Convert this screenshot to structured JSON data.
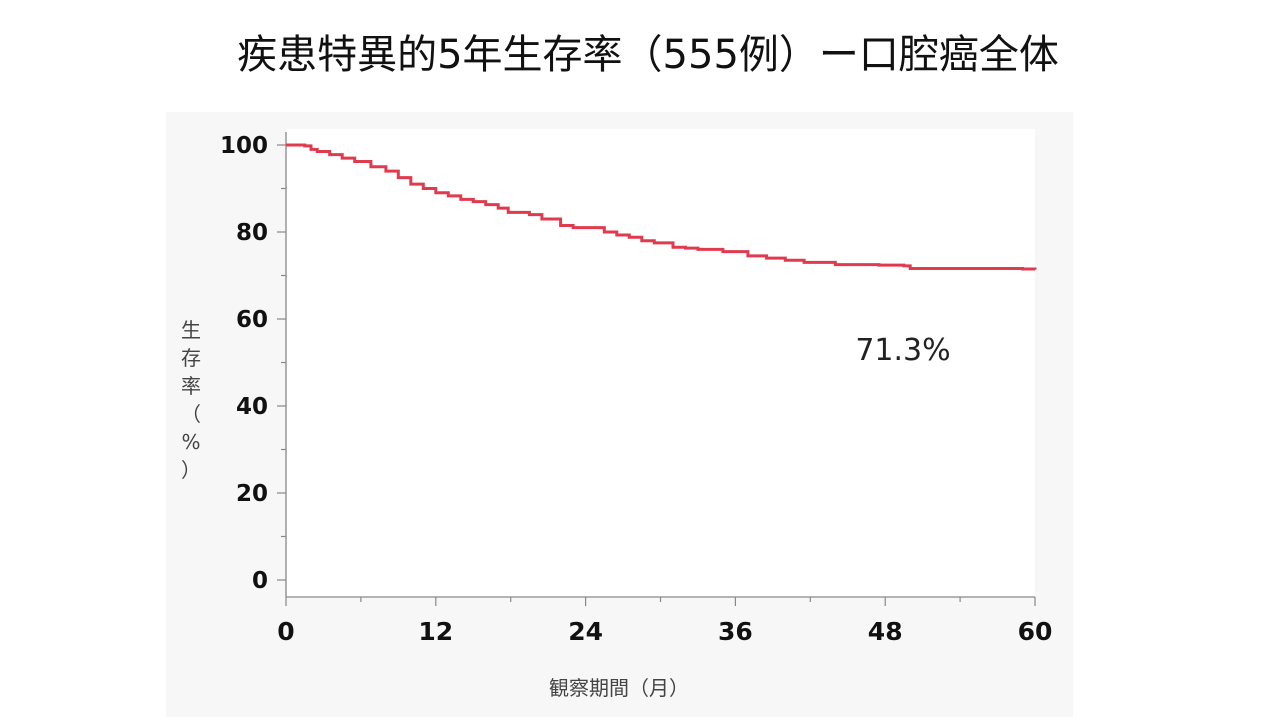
{
  "title": "疾患特異的5年生存率（555例）ー口腔癌全体",
  "colors": {
    "curve": "#e03a4e",
    "axis": "#888888",
    "plot_bg": "#ffffff",
    "panel_bg": "#f7f7f7"
  },
  "chart_data": {
    "type": "line",
    "step": true,
    "xlabel": "観察期間（月）",
    "ylabel": "生存率（%）",
    "xlim": [
      0,
      60
    ],
    "ylim": [
      0,
      100
    ],
    "x_ticks": [
      "0",
      "12",
      "24",
      "36",
      "48",
      "60"
    ],
    "y_ticks": [
      "0",
      "20",
      "40",
      "60",
      "80",
      "100"
    ],
    "grid": false,
    "annotation": "71.3%",
    "series": [
      {
        "x": [
          0,
          1.5,
          2.0,
          2.5,
          3.5,
          4.5,
          5.5,
          6.8,
          8.0,
          9.0,
          10.0,
          11.0,
          12.0,
          13.0,
          14.0,
          15.0,
          16.0,
          17.0,
          17.8,
          19.5,
          20.5,
          22.0,
          23.0,
          25.5,
          26.5,
          27.5,
          28.5,
          29.5,
          31.0,
          32.0,
          33.0,
          35.0,
          37.0,
          38.5,
          40.0,
          41.5,
          44.0,
          47.5,
          49.5,
          50.0,
          59.0,
          60.0
        ],
        "y": [
          100,
          99.8,
          99.0,
          98.5,
          97.8,
          97.0,
          96.2,
          95.0,
          94.0,
          92.5,
          91.0,
          90.0,
          89.0,
          88.3,
          87.5,
          87.0,
          86.3,
          85.5,
          84.5,
          84.0,
          83.0,
          81.5,
          81.0,
          80.0,
          79.3,
          78.8,
          78.0,
          77.5,
          76.5,
          76.3,
          76.0,
          75.5,
          74.5,
          74.0,
          73.5,
          73.0,
          72.5,
          72.4,
          72.2,
          71.6,
          71.5,
          71.3
        ]
      }
    ]
  }
}
